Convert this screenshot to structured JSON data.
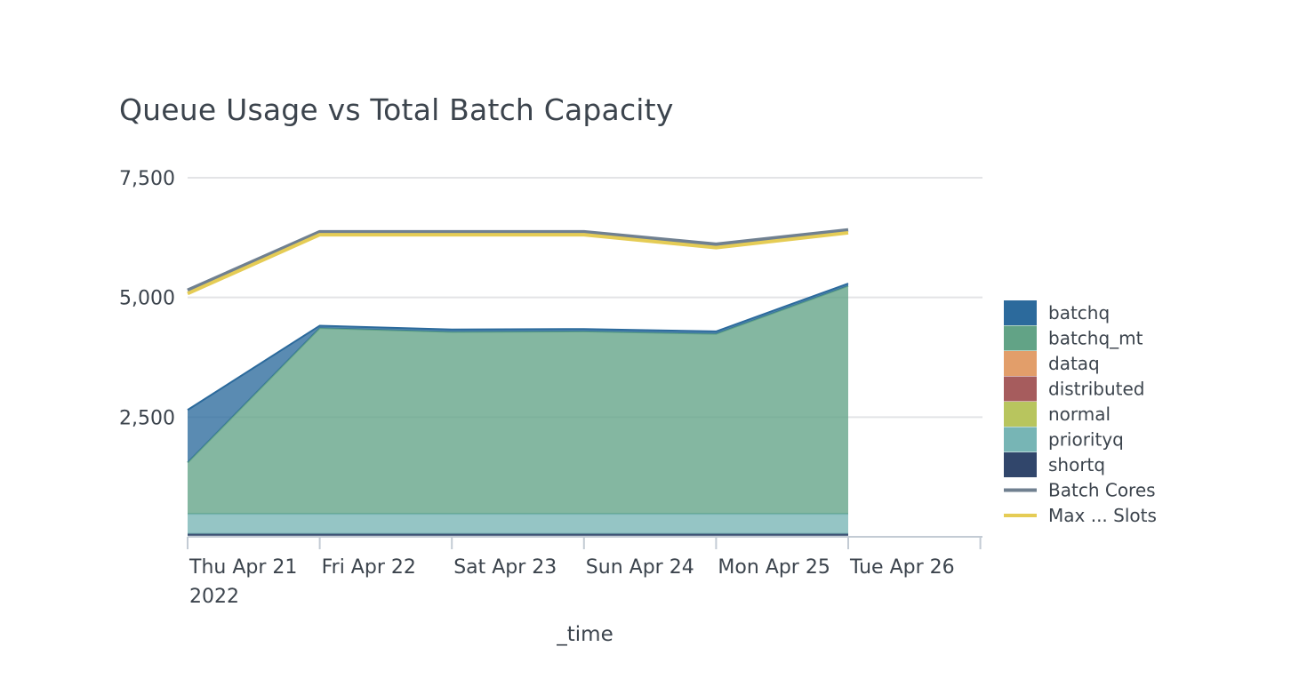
{
  "chart_data": {
    "type": "area",
    "title": "Queue Usage vs Total Batch Capacity",
    "xlabel": "_time",
    "ylabel": "",
    "ylim": [
      0,
      7500
    ],
    "y_ticks": [
      2500,
      5000,
      7500
    ],
    "y_tick_labels": [
      "2,500",
      "5,000",
      "7,500"
    ],
    "x": [
      "Thu Apr 21 2022",
      "Fri Apr 22",
      "Sat Apr 23",
      "Sun Apr 24",
      "Mon Apr 25",
      "Tue Apr 26"
    ],
    "x_tick_labels": [
      [
        "Thu Apr 21",
        "2022"
      ],
      [
        "Fri Apr 22"
      ],
      [
        "Sat Apr 23"
      ],
      [
        "Sun Apr 24"
      ],
      [
        "Mon Apr 25"
      ],
      [
        "Tue Apr 26"
      ]
    ],
    "stacked": true,
    "grid": true,
    "legend_position": "right",
    "area_series": [
      {
        "name": "shortq",
        "color": "#31466b",
        "values": [
          60,
          60,
          60,
          60,
          60,
          60
        ]
      },
      {
        "name": "priorityq",
        "color": "#77b5b5",
        "values": [
          420,
          420,
          420,
          420,
          420,
          420
        ]
      },
      {
        "name": "normal",
        "color": "#b8c55e",
        "values": [
          0,
          0,
          0,
          0,
          0,
          0
        ]
      },
      {
        "name": "distributed",
        "color": "#a65c5d",
        "values": [
          0,
          0,
          0,
          0,
          0,
          0
        ]
      },
      {
        "name": "dataq",
        "color": "#e29e6a",
        "values": [
          0,
          0,
          0,
          0,
          0,
          0
        ]
      },
      {
        "name": "batchq_mt",
        "color": "#62a386",
        "values": [
          1070,
          3880,
          3800,
          3810,
          3760,
          4760
        ]
      },
      {
        "name": "batchq",
        "color": "#2c6a9c",
        "values": [
          1100,
          50,
          50,
          50,
          50,
          50
        ]
      }
    ],
    "line_series": [
      {
        "name": "Batch Cores",
        "color": "#708090",
        "values": [
          5150,
          6370,
          6370,
          6370,
          6110,
          6410
        ]
      },
      {
        "name": "Max ... Slots",
        "color": "#e5cc55",
        "values": [
          5080,
          6310,
          6310,
          6310,
          6040,
          6350
        ]
      }
    ],
    "legend": [
      {
        "name": "batchq",
        "color": "#2c6a9c",
        "kind": "area"
      },
      {
        "name": "batchq_mt",
        "color": "#62a386",
        "kind": "area"
      },
      {
        "name": "dataq",
        "color": "#e29e6a",
        "kind": "area"
      },
      {
        "name": "distributed",
        "color": "#a65c5d",
        "kind": "area"
      },
      {
        "name": "normal",
        "color": "#b8c55e",
        "kind": "area"
      },
      {
        "name": "priorityq",
        "color": "#77b5b5",
        "kind": "area"
      },
      {
        "name": "shortq",
        "color": "#31466b",
        "kind": "area"
      },
      {
        "name": "Batch Cores",
        "color": "#708090",
        "kind": "line"
      },
      {
        "name": "Max ... Slots",
        "color": "#e5cc55",
        "kind": "line"
      }
    ]
  }
}
